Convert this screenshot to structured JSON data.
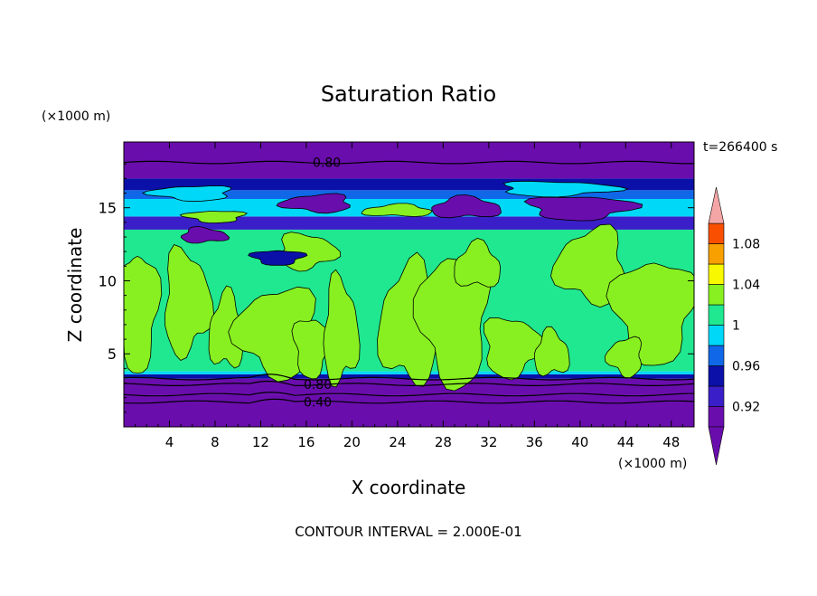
{
  "chart_data": {
    "type": "heatmap",
    "title": "Saturation Ratio",
    "xlabel": "X coordinate",
    "ylabel": "Z coordinate",
    "x_unit": "(×1000 m)",
    "y_unit": "(×1000 m)",
    "time_label": "t=266400 s",
    "footer": "CONTOUR INTERVAL = 2.000E-01",
    "xlim": [
      0,
      50
    ],
    "ylim": [
      0,
      19.5
    ],
    "x_ticks": [
      4,
      8,
      12,
      16,
      20,
      24,
      28,
      32,
      36,
      40,
      44,
      48
    ],
    "y_ticks": [
      5,
      10,
      15
    ],
    "grid": false,
    "contour_labels": [
      {
        "text": "0.80",
        "x": 17.8,
        "z": 18.1
      },
      {
        "text": "0.80",
        "x": 17.0,
        "z": 2.9
      },
      {
        "text": "0.40",
        "x": 17.0,
        "z": 1.7
      }
    ],
    "colorbar": {
      "levels": [
        0.9,
        0.92,
        0.94,
        0.96,
        0.98,
        1.0,
        1.02,
        1.04,
        1.06,
        1.08,
        1.1
      ],
      "tick_labels": [
        "0.92",
        "0.96",
        "1",
        "1.04",
        "1.08"
      ],
      "tick_values": [
        0.92,
        0.96,
        1.0,
        1.04,
        1.08
      ],
      "colors": [
        "#6a0dad",
        "#3a1fc8",
        "#0a10a8",
        "#1068e8",
        "#00d8f8",
        "#20e890",
        "#88f020",
        "#f8f800",
        "#f8a000",
        "#f85000",
        "#e82020"
      ],
      "over_color": "#f4a6a6",
      "under_color": "#6a0dad"
    },
    "bands": [
      {
        "z": [
          0.0,
          2.2
        ],
        "value": 0.4,
        "color": "#6a0dad"
      },
      {
        "z": [
          2.2,
          3.3
        ],
        "value": 0.8,
        "color": "#6a0dad"
      },
      {
        "z": [
          3.3,
          3.6
        ],
        "value": 0.93,
        "color": "#0a10a8"
      },
      {
        "z": [
          3.6,
          3.8
        ],
        "value": 0.97,
        "color": "#00d8f8"
      },
      {
        "z": [
          3.8,
          13.5
        ],
        "value": 0.99,
        "color": "#20e890"
      },
      {
        "z": [
          13.5,
          14.4
        ],
        "value": 0.93,
        "color": "#3a1fc8"
      },
      {
        "z": [
          14.4,
          15.6
        ],
        "value": 0.97,
        "color": "#00d8f8"
      },
      {
        "z": [
          15.6,
          16.2
        ],
        "value": 0.95,
        "color": "#1068e8"
      },
      {
        "z": [
          16.2,
          17.0
        ],
        "value": 0.93,
        "color": "#0a10a8"
      },
      {
        "z": [
          17.0,
          19.5
        ],
        "value": 0.8,
        "color": "#6a0dad"
      }
    ],
    "regions_above_1": [
      {
        "cx": 1.2,
        "cz": 8.0,
        "rx": 1.8,
        "rz": 4.0
      },
      {
        "cx": 5.5,
        "cz": 8.5,
        "rx": 2.0,
        "rz": 3.5
      },
      {
        "cx": 9.0,
        "cz": 6.5,
        "rx": 1.5,
        "rz": 2.5
      },
      {
        "cx": 13.5,
        "cz": 6.5,
        "rx": 3.5,
        "rz": 3.0
      },
      {
        "cx": 16.5,
        "cz": 5.5,
        "rx": 1.6,
        "rz": 2.0
      },
      {
        "cx": 19.0,
        "cz": 6.5,
        "rx": 1.5,
        "rz": 3.5
      },
      {
        "cx": 25.0,
        "cz": 7.0,
        "rx": 2.5,
        "rz": 4.0
      },
      {
        "cx": 29.0,
        "cz": 7.5,
        "rx": 3.0,
        "rz": 4.5
      },
      {
        "cx": 34.0,
        "cz": 5.5,
        "rx": 2.5,
        "rz": 2.0
      },
      {
        "cx": 37.5,
        "cz": 5.0,
        "rx": 1.5,
        "rz": 1.5
      },
      {
        "cx": 41.0,
        "cz": 11.0,
        "rx": 3.0,
        "rz": 2.5
      },
      {
        "cx": 46.5,
        "cz": 8.0,
        "rx": 3.5,
        "rz": 3.5
      },
      {
        "cx": 16.0,
        "cz": 12.0,
        "rx": 2.5,
        "rz": 1.2
      },
      {
        "cx": 31.0,
        "cz": 11.0,
        "rx": 2.0,
        "rz": 1.5
      },
      {
        "cx": 44.0,
        "cz": 4.8,
        "rx": 1.5,
        "rz": 1.3
      }
    ],
    "regions_upper": [
      {
        "cx": 13.5,
        "cz": 11.6,
        "rx": 2.2,
        "rz": 0.5,
        "color": "#0a10a8"
      },
      {
        "cx": 7.0,
        "cz": 13.1,
        "rx": 2.0,
        "rz": 0.5,
        "color": "#6a0dad"
      },
      {
        "cx": 17.0,
        "cz": 15.3,
        "rx": 3.0,
        "rz": 0.6,
        "color": "#6a0dad"
      },
      {
        "cx": 40.0,
        "cz": 15.0,
        "rx": 4.5,
        "rz": 0.8,
        "color": "#6a0dad"
      },
      {
        "cx": 30.0,
        "cz": 15.0,
        "rx": 3.0,
        "rz": 0.7,
        "color": "#6a0dad"
      },
      {
        "cx": 6.0,
        "cz": 16.0,
        "rx": 3.5,
        "rz": 0.5,
        "color": "#00d8f8"
      },
      {
        "cx": 38.0,
        "cz": 16.3,
        "rx": 5.0,
        "rz": 0.5,
        "color": "#00d8f8"
      },
      {
        "cx": 24.0,
        "cz": 14.8,
        "rx": 3.0,
        "rz": 0.4,
        "color": "#88f020"
      },
      {
        "cx": 8.0,
        "cz": 14.4,
        "rx": 2.5,
        "rz": 0.4,
        "color": "#88f020"
      }
    ]
  }
}
